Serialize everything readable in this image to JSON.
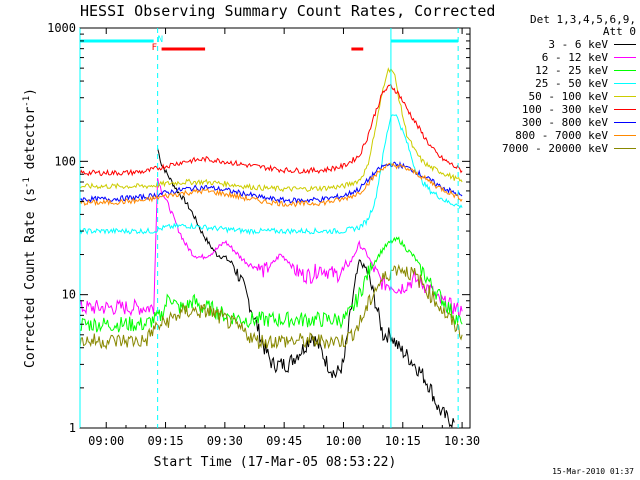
{
  "chart_data": {
    "type": "line",
    "title": "HESSI Observing Summary Count Rates, Corrected",
    "xlabel": "Start Time (17-Mar-05 08:53:22)",
    "ylabel_main": "Corrected Count Rate (s",
    "ylabel_sup1": "-1",
    "ylabel_mid": " detector",
    "ylabel_sup2": "-1",
    "ylabel_end": ")",
    "y_scale": "log",
    "ylim": [
      1,
      1000
    ],
    "xlim": [
      "08:53:22",
      "10:32:00"
    ],
    "x_ticks": [
      "09:00",
      "09:15",
      "09:30",
      "09:45",
      "10:00",
      "10:15",
      "10:30"
    ],
    "y_ticks": [
      "1",
      "10",
      "100",
      "1000"
    ],
    "legend_header": [
      "Det 1,3,4,5,6,9,",
      "Att 0"
    ],
    "series": [
      {
        "name": "3 - 6 keV",
        "color": "#000000",
        "x": [
          "09:13",
          "09:14",
          "09:16",
          "09:18",
          "09:20",
          "09:22",
          "09:24",
          "09:26",
          "09:28",
          "09:30",
          "09:32",
          "09:34",
          "09:36",
          "09:38",
          "09:40",
          "09:42",
          "09:44",
          "09:46",
          "09:48",
          "09:50",
          "09:52",
          "09:54",
          "09:56",
          "09:58",
          "10:00",
          "10:02",
          "10:04",
          "10:06",
          "10:08",
          "10:10",
          "10:12",
          "10:14",
          "10:16",
          "10:18",
          "10:20",
          "10:22",
          "10:24",
          "10:26",
          "10:28"
        ],
        "y": [
          125,
          95,
          75,
          60,
          50,
          40,
          30,
          24,
          20,
          19,
          17,
          13,
          9,
          6,
          4,
          3,
          3,
          3,
          3.5,
          4,
          5,
          4,
          3,
          2.5,
          3,
          8,
          18,
          15,
          9,
          5,
          5,
          4,
          3.5,
          3,
          2.5,
          2,
          1.4,
          1.2,
          1.1
        ]
      },
      {
        "name": "6 - 12 keV",
        "color": "#ff00ff",
        "x": [
          "08:53:22",
          "09:00",
          "09:05",
          "09:10",
          "09:12",
          "09:13",
          "09:14",
          "09:16",
          "09:18",
          "09:20",
          "09:22",
          "09:24",
          "09:26",
          "09:28",
          "09:30",
          "09:32",
          "09:34",
          "09:36",
          "09:38",
          "09:40",
          "09:42",
          "09:44",
          "09:46",
          "09:48",
          "09:50",
          "09:52",
          "09:54",
          "09:56",
          "09:58",
          "10:00",
          "10:02",
          "10:04",
          "10:06",
          "10:08",
          "10:10",
          "10:12",
          "10:14",
          "10:16",
          "10:18",
          "10:20",
          "10:22",
          "10:24",
          "10:26",
          "10:28",
          "10:30"
        ],
        "y": [
          8,
          8,
          8,
          8,
          8,
          75,
          60,
          45,
          32,
          24,
          20,
          19,
          20,
          22,
          25,
          22,
          19,
          17,
          16,
          15,
          17,
          20,
          18,
          15,
          14,
          14,
          16,
          15,
          14,
          15,
          18,
          24,
          20,
          15,
          12,
          12,
          11,
          12,
          13,
          12,
          11,
          9,
          8.5,
          8,
          7.5
        ]
      },
      {
        "name": "12 - 25 keV",
        "color": "#00ff00",
        "x": [
          "08:53:22",
          "09:00",
          "09:05",
          "09:10",
          "09:12",
          "09:14",
          "09:16",
          "09:18",
          "09:20",
          "09:22",
          "09:24",
          "09:26",
          "09:28",
          "09:30",
          "09:35",
          "09:40",
          "09:45",
          "09:50",
          "09:55",
          "10:00",
          "10:02",
          "10:04",
          "10:06",
          "10:08",
          "10:10",
          "10:12",
          "10:14",
          "10:16",
          "10:18",
          "10:20",
          "10:22",
          "10:24",
          "10:26",
          "10:28",
          "10:30"
        ],
        "y": [
          6,
          6,
          6,
          6,
          6.5,
          7,
          10,
          8,
          8,
          9,
          8,
          8,
          7.5,
          7,
          6.5,
          6.5,
          6.5,
          6.5,
          6.5,
          6.5,
          7.5,
          10,
          14,
          18,
          22,
          25,
          26,
          22,
          19,
          15,
          12,
          10,
          8.5,
          7,
          6
        ]
      },
      {
        "name": "25 - 50 keV",
        "color": "#00ffff",
        "x": [
          "08:53:22",
          "09:00",
          "09:05",
          "09:10",
          "09:12",
          "09:15",
          "09:20",
          "09:25",
          "09:30",
          "09:35",
          "09:40",
          "09:45",
          "09:50",
          "09:55",
          "10:00",
          "10:04",
          "10:06",
          "10:08",
          "10:10",
          "10:11",
          "10:12",
          "10:13",
          "10:14",
          "10:16",
          "10:18",
          "10:20",
          "10:22",
          "10:24",
          "10:26",
          "10:28",
          "10:30"
        ],
        "y": [
          30,
          30,
          30,
          30,
          30,
          32,
          33,
          32,
          31,
          30,
          30,
          30,
          30,
          30,
          30,
          32,
          36,
          50,
          110,
          160,
          220,
          230,
          200,
          140,
          90,
          70,
          60,
          55,
          50,
          48,
          45
        ]
      },
      {
        "name": "50 - 100 keV",
        "color": "#cccc00",
        "x": [
          "08:53:22",
          "09:00",
          "09:05",
          "09:10",
          "09:12",
          "09:15",
          "09:20",
          "09:25",
          "09:30",
          "09:35",
          "09:40",
          "09:45",
          "09:50",
          "09:55",
          "10:00",
          "10:04",
          "10:06",
          "10:08",
          "10:10",
          "10:11",
          "10:12",
          "10:13",
          "10:14",
          "10:16",
          "10:18",
          "10:20",
          "10:22",
          "10:24",
          "10:26",
          "10:28",
          "10:30"
        ],
        "y": [
          65,
          65,
          65,
          65,
          66,
          68,
          70,
          70,
          68,
          65,
          63,
          62,
          62,
          63,
          65,
          72,
          90,
          170,
          350,
          470,
          500,
          430,
          300,
          160,
          120,
          100,
          90,
          85,
          80,
          75,
          70
        ]
      },
      {
        "name": "100 - 300 keV",
        "color": "#ff0000",
        "x": [
          "08:53:22",
          "09:00",
          "09:05",
          "09:10",
          "09:15",
          "09:20",
          "09:25",
          "09:30",
          "09:35",
          "09:40",
          "09:45",
          "09:50",
          "09:55",
          "10:00",
          "10:04",
          "10:06",
          "10:08",
          "10:10",
          "10:12",
          "10:14",
          "10:16",
          "10:18",
          "10:20",
          "10:22",
          "10:24",
          "10:26",
          "10:28",
          "10:30"
        ],
        "y": [
          82,
          82,
          82,
          84,
          92,
          100,
          104,
          100,
          94,
          90,
          86,
          85,
          86,
          92,
          110,
          150,
          230,
          330,
          370,
          320,
          250,
          200,
          160,
          130,
          110,
          100,
          92,
          85
        ]
      },
      {
        "name": "300 - 800 keV",
        "color": "#0000ff",
        "x": [
          "08:53:22",
          "09:00",
          "09:05",
          "09:10",
          "09:15",
          "09:20",
          "09:25",
          "09:30",
          "09:35",
          "09:40",
          "09:45",
          "09:50",
          "09:55",
          "10:00",
          "10:04",
          "10:08",
          "10:10",
          "10:12",
          "10:14",
          "10:16",
          "10:18",
          "10:20",
          "10:22",
          "10:24",
          "10:26",
          "10:28",
          "10:30"
        ],
        "y": [
          52,
          52,
          53,
          54,
          58,
          62,
          64,
          61,
          57,
          53,
          51,
          51,
          52,
          55,
          62,
          82,
          92,
          95,
          94,
          90,
          85,
          78,
          72,
          66,
          62,
          58,
          55
        ]
      },
      {
        "name": "800 - 7000 keV",
        "color": "#ff8800",
        "x": [
          "08:53:22",
          "09:00",
          "09:05",
          "09:10",
          "09:15",
          "09:20",
          "09:25",
          "09:30",
          "09:35",
          "09:40",
          "09:45",
          "09:50",
          "09:55",
          "10:00",
          "10:04",
          "10:08",
          "10:10",
          "10:12",
          "10:14",
          "10:16",
          "10:18",
          "10:20",
          "10:22",
          "10:24",
          "10:26",
          "10:28",
          "10:30"
        ],
        "y": [
          49,
          49,
          50,
          51,
          55,
          58,
          60,
          57,
          53,
          50,
          48,
          48,
          49,
          52,
          58,
          78,
          90,
          94,
          92,
          88,
          83,
          76,
          70,
          64,
          60,
          56,
          52
        ]
      },
      {
        "name": "7000 - 20000 keV",
        "color": "#888800",
        "x": [
          "08:53:22",
          "09:00",
          "09:05",
          "09:10",
          "09:12",
          "09:14",
          "09:16",
          "09:18",
          "09:20",
          "09:22",
          "09:24",
          "09:26",
          "09:28",
          "09:30",
          "09:32",
          "09:34",
          "09:36",
          "09:38",
          "09:40",
          "09:45",
          "09:50",
          "09:55",
          "10:00",
          "10:02",
          "10:04",
          "10:06",
          "10:08",
          "10:10",
          "10:12",
          "10:14",
          "10:16",
          "10:18",
          "10:20",
          "10:22",
          "10:24",
          "10:26",
          "10:28",
          "10:30"
        ],
        "y": [
          4.5,
          4.5,
          4.5,
          4.5,
          5.5,
          6,
          6.5,
          7,
          7.5,
          7.5,
          7.5,
          7.5,
          7,
          6.5,
          6,
          5.5,
          5,
          4.5,
          4.5,
          4.5,
          4.5,
          4.5,
          4.5,
          5,
          6,
          8,
          11,
          13,
          15,
          16,
          15,
          14,
          12,
          10,
          8.5,
          7,
          6,
          5
        ]
      }
    ],
    "vertical_lines": [
      {
        "x": "08:53:22",
        "color": "#00ffff",
        "style": "solid"
      },
      {
        "x": "09:13",
        "color": "#00ffff",
        "style": "dashed"
      },
      {
        "x": "10:12",
        "color": "#00ffff",
        "style": "solid"
      },
      {
        "x": "10:29",
        "color": "#00ffff",
        "style": "dashed"
      }
    ],
    "top_bars": [
      {
        "name": "N",
        "color": "#00ffff",
        "intervals": [
          [
            "08:53:22",
            "09:12"
          ],
          [
            "10:12",
            "10:29"
          ]
        ]
      },
      {
        "name": "F",
        "color": "#ff0000",
        "intervals": [
          [
            "09:14",
            "09:25"
          ],
          [
            "10:02",
            "10:05"
          ]
        ]
      }
    ]
  },
  "timestamp": "15-Mar-2010 01:37"
}
